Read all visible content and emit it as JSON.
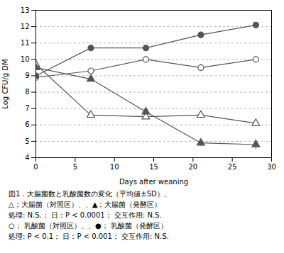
{
  "chart_data": {
    "type": "line",
    "xlabel": "Days after weaning",
    "ylabel": "Log CFU/g DM",
    "x": [
      0,
      7,
      14,
      21,
      28
    ],
    "series": [
      {
        "color": "#555555",
        "marker": "open_triangle",
        "values": [
          9.7,
          6.6,
          6.5,
          6.6,
          6.1
        ],
        "errors": [
          0.15,
          0.2,
          0.15,
          0.2,
          0.2
        ]
      },
      {
        "color": "#555555",
        "marker": "triangle",
        "values": [
          9.5,
          8.8,
          6.8,
          4.9,
          4.8
        ],
        "errors": [
          0.15,
          0.15,
          0.15,
          0.2,
          0.3
        ]
      },
      {
        "color": "#555555",
        "marker": "open_circle",
        "values": [
          8.9,
          9.3,
          10.0,
          9.5,
          10.0
        ],
        "errors": [
          0.15,
          0.15,
          0.15,
          0.2,
          0.2
        ]
      },
      {
        "color": "#555555",
        "marker": "circle",
        "values": [
          9.0,
          10.7,
          10.7,
          11.5,
          12.1
        ],
        "errors": [
          0.15,
          0.15,
          0.15,
          0.15,
          0.1
        ]
      }
    ],
    "xlim": [
      0,
      30
    ],
    "ylim": [
      4,
      13
    ],
    "xticks": [
      0,
      5,
      10,
      15,
      20,
      25,
      30
    ],
    "yticks": [
      4,
      5,
      6,
      7,
      8,
      9,
      10,
      11,
      12,
      13
    ],
    "grid": "y",
    "annotations": [
      "図1．大腸菌数と乳酸菌数の変化（平均値±SD）、",
      "△；大腸菌（対照区）、、▲；大腸菌（発酵区）",
      "処理: N.S.； 日：P < 0.0001； 交互作用: N.S.",
      "○； 乳酸菌（対照区）、、●； 乳酸菌（発酵区）",
      "処理: P < 0.1； 日：P < 0.001； 交互作用: N.S."
    ]
  }
}
